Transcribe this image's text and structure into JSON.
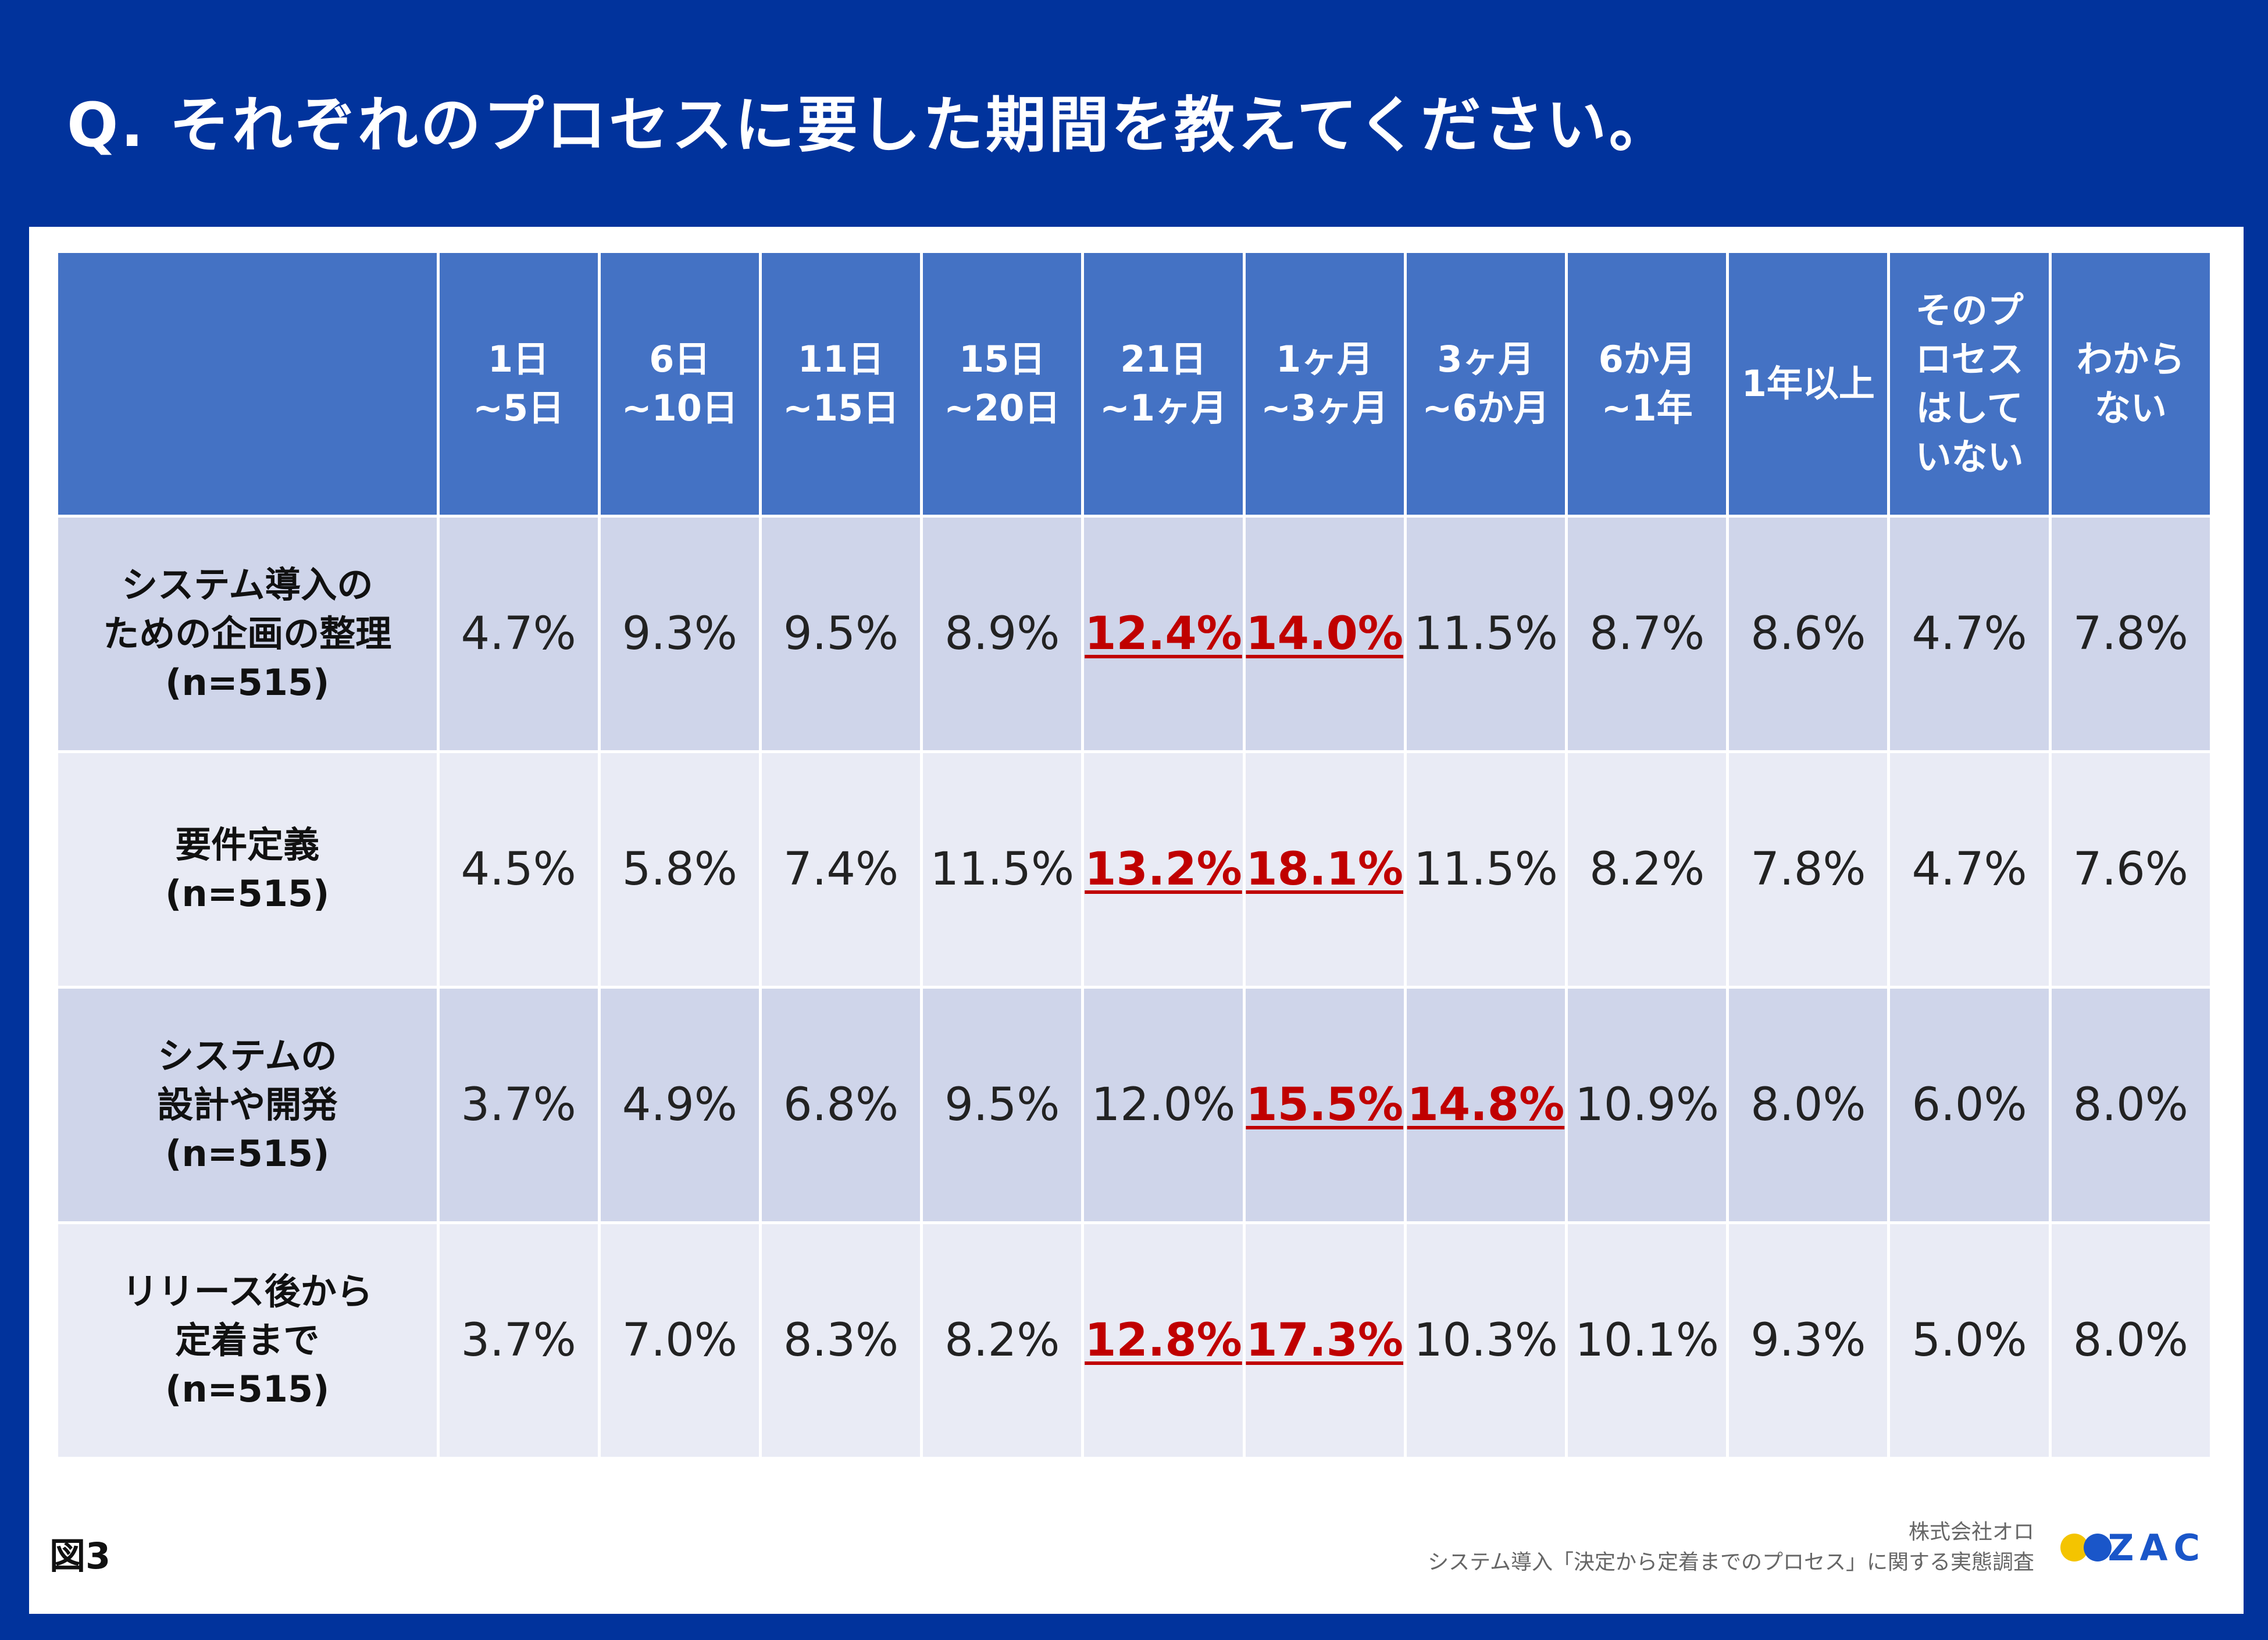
{
  "title": {
    "prefix": "Q.",
    "text": "それぞれのプロセスに要した期間を教えてください。"
  },
  "colors": {
    "background": "#01339c",
    "header": "#4472c4",
    "row_odd": "#cfd5ea",
    "row_even": "#e9ebf5",
    "highlight": "#c00000"
  },
  "chart_data": {
    "type": "table",
    "unit": "%",
    "columns": [
      {
        "line1": "1日",
        "line2": "~5日"
      },
      {
        "line1": "6日",
        "line2": "~10日"
      },
      {
        "line1": "11日",
        "line2": "~15日"
      },
      {
        "line1": "15日",
        "line2": "~20日"
      },
      {
        "line1": "21日",
        "line2": "~1ヶ月"
      },
      {
        "line1": "1ヶ月",
        "line2": "~3ヶ月"
      },
      {
        "line1": "3ヶ月",
        "line2": "~6か月"
      },
      {
        "line1": "6か月",
        "line2": "~1年"
      },
      {
        "line1": "1年以上"
      },
      {
        "line1": "そのプ",
        "line2": "ロセス",
        "line3": "はして",
        "line4": "いない"
      },
      {
        "line1": "わから",
        "line2": "ない"
      }
    ],
    "rows": [
      {
        "label1": "システム導入の",
        "label2": "ための企画の整理",
        "n": "(n=515)",
        "values": [
          "4.7%",
          "9.3%",
          "9.5%",
          "8.9%",
          "12.4%",
          "14.0%",
          "11.5%",
          "8.7%",
          "8.6%",
          "4.7%",
          "7.8%"
        ],
        "highlight": [
          false,
          false,
          false,
          false,
          true,
          true,
          false,
          false,
          false,
          false,
          false
        ]
      },
      {
        "label1": "要件定義",
        "label2": "",
        "n": "(n=515)",
        "values": [
          "4.5%",
          "5.8%",
          "7.4%",
          "11.5%",
          "13.2%",
          "18.1%",
          "11.5%",
          "8.2%",
          "7.8%",
          "4.7%",
          "7.6%"
        ],
        "highlight": [
          false,
          false,
          false,
          false,
          true,
          true,
          false,
          false,
          false,
          false,
          false
        ]
      },
      {
        "label1": "システムの",
        "label2": "設計や開発",
        "n": "(n=515)",
        "values": [
          "3.7%",
          "4.9%",
          "6.8%",
          "9.5%",
          "12.0%",
          "15.5%",
          "14.8%",
          "10.9%",
          "8.0%",
          "6.0%",
          "8.0%"
        ],
        "highlight": [
          false,
          false,
          false,
          false,
          false,
          true,
          true,
          false,
          false,
          false,
          false
        ]
      },
      {
        "label1": "リリース後から",
        "label2": "定着まで",
        "n": "(n=515)",
        "values": [
          "3.7%",
          "7.0%",
          "8.3%",
          "8.2%",
          "12.8%",
          "17.3%",
          "10.3%",
          "10.1%",
          "9.3%",
          "5.0%",
          "8.0%"
        ],
        "highlight": [
          false,
          false,
          false,
          false,
          true,
          true,
          false,
          false,
          false,
          false,
          false
        ]
      }
    ]
  },
  "footer": {
    "figure_label": "図3",
    "company": "株式会社オロ",
    "survey": "システム導入「決定から定着までのプロセス」に関する実態調査",
    "logo_text": "ZAC"
  }
}
